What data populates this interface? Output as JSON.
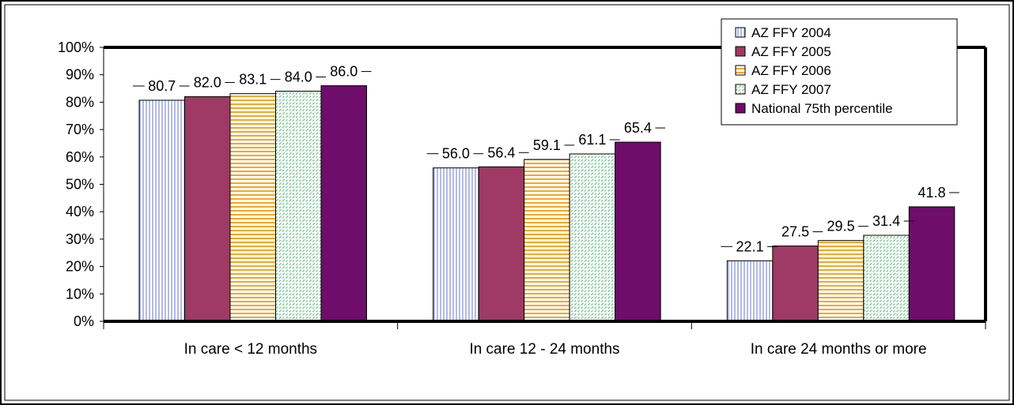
{
  "chart_data": {
    "type": "bar",
    "categories": [
      "In care < 12 months",
      "In care 12 - 24 months",
      "In care 24 months or more"
    ],
    "series": [
      {
        "name": "AZ FFY 2004",
        "values": [
          80.7,
          56.0,
          22.1
        ],
        "labels": [
          "80.7",
          "56.0",
          "22.1"
        ],
        "color": "#ffffff",
        "pattern": "vertical-lines",
        "pattern_color": "#8a96d8"
      },
      {
        "name": "AZ FFY 2005",
        "values": [
          82.0,
          56.4,
          27.5
        ],
        "labels": [
          "82.0",
          "56.4",
          "27.5"
        ],
        "color": "#9e3a64",
        "pattern": "solid"
      },
      {
        "name": "AZ FFY 2006",
        "values": [
          83.1,
          59.1,
          29.5
        ],
        "labels": [
          "83.1",
          "59.1",
          "29.5"
        ],
        "color": "#ffffff",
        "pattern": "horizontal-lines",
        "pattern_color": "#f5a623"
      },
      {
        "name": "AZ FFY 2007",
        "values": [
          84.0,
          61.1,
          31.4
        ],
        "labels": [
          "84.0",
          "61.1",
          "31.4"
        ],
        "color": "#ffffff",
        "pattern": "diagonal-hatch",
        "pattern_color": "#6fbf8e"
      },
      {
        "name": "National 75th percentile",
        "values": [
          86.0,
          65.4,
          41.8
        ],
        "labels": [
          "86.0",
          "65.4",
          "41.8"
        ],
        "color": "#6e0d6a",
        "pattern": "solid"
      }
    ],
    "y_ticks": [
      "0%",
      "10%",
      "20%",
      "30%",
      "40%",
      "50%",
      "60%",
      "70%",
      "80%",
      "90%",
      "100%"
    ],
    "ylim": [
      0,
      100
    ],
    "grid": false,
    "legend_position": "top-right"
  }
}
